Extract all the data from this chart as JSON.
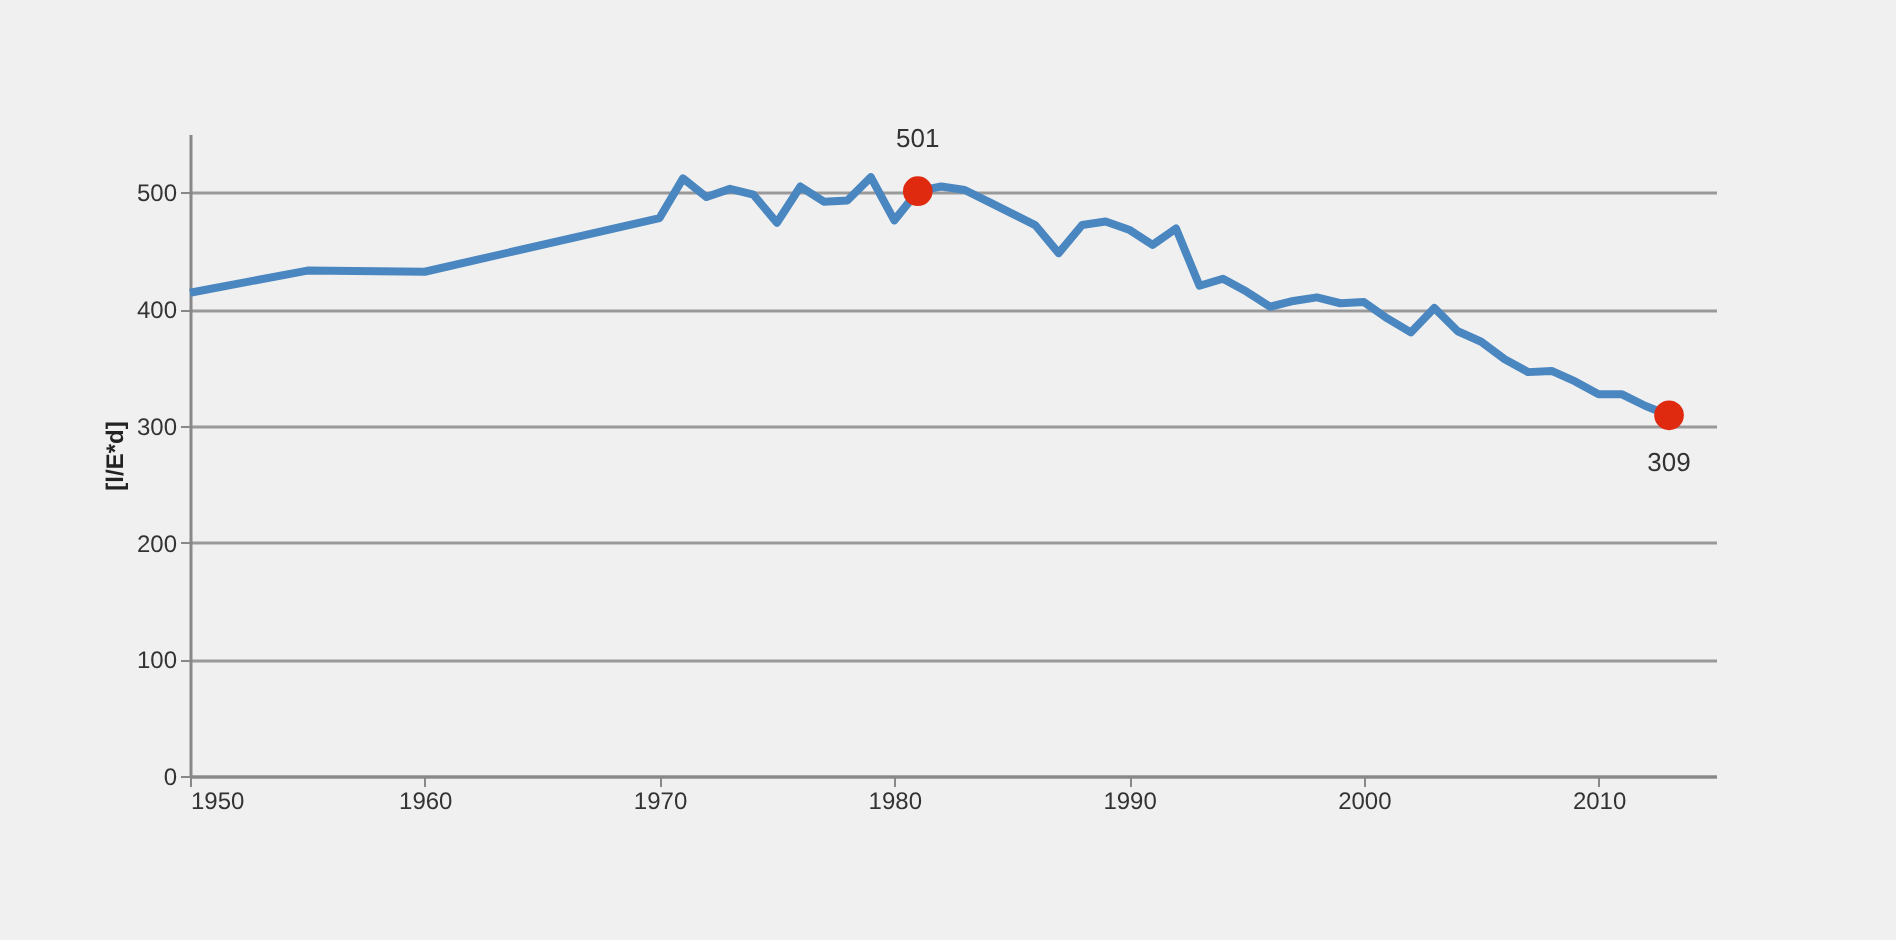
{
  "chart_data": {
    "type": "line",
    "ylabel": "[l/E*d]",
    "xlim": [
      1950,
      2015
    ],
    "xticks": [
      1950,
      1960,
      1970,
      1980,
      1990,
      2000,
      2010
    ],
    "ylim": [
      0,
      550
    ],
    "yticks": [
      0,
      100,
      200,
      300,
      400,
      500
    ],
    "grid": "y",
    "series": [
      {
        "color": "#4a86c0",
        "x": [
          1950,
          1955,
          1960,
          1970,
          1971,
          1972,
          1973,
          1974,
          1975,
          1976,
          1977,
          1978,
          1979,
          1980,
          1981,
          1982,
          1983,
          1984,
          1985,
          1986,
          1987,
          1988,
          1989,
          1990,
          1991,
          1992,
          1993,
          1994,
          1995,
          1996,
          1997,
          1998,
          1999,
          2000,
          2001,
          2002,
          2003,
          2004,
          2005,
          2006,
          2007,
          2008,
          2009,
          2010,
          2011,
          2012,
          2013
        ],
        "values": [
          414,
          433,
          432,
          478,
          512,
          496,
          503,
          498,
          474,
          505,
          492,
          493,
          513,
          476,
          501,
          505,
          502,
          492,
          482,
          472,
          448,
          472,
          475,
          468,
          455,
          469,
          420,
          426,
          415,
          402,
          407,
          410,
          405,
          406,
          392,
          380,
          401,
          381,
          372,
          357,
          346,
          347,
          338,
          327,
          327,
          317,
          309
        ]
      },
      {
        "type": "scatter",
        "color": "#e02a10",
        "x": [
          1981,
          2013
        ],
        "values": [
          501,
          309
        ],
        "value_labels": [
          "501",
          "309"
        ]
      }
    ]
  }
}
